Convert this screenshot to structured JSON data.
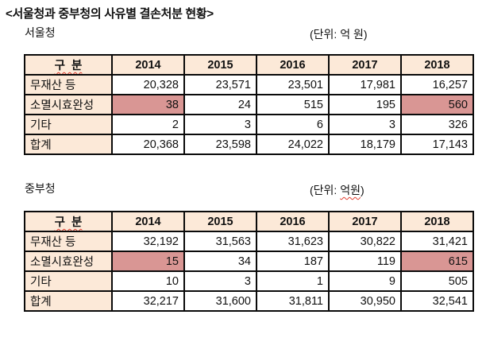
{
  "page": {
    "title": "<서울청과 중부청의 사유별 결손처분 현황>"
  },
  "colors": {
    "header_bg": "#FCE9D8",
    "highlight_bg": "#D99694",
    "border": "#0A0A0A",
    "spellcheck_red": "#E03C2D"
  },
  "tables": [
    {
      "label": "서울청",
      "unit_prefix": "(단위: ",
      "unit_word": "억 원",
      "unit_suffix": ")",
      "unit_misspelled": false,
      "header": [
        "구  분",
        "2014",
        "2015",
        "2016",
        "2017",
        "2018"
      ],
      "rows": [
        {
          "label": "무재산 등",
          "values": [
            "20,328",
            "23,571",
            "23,501",
            "17,981",
            "16,257"
          ],
          "highlight_cols": []
        },
        {
          "label": "소멸시효완성",
          "values": [
            "38",
            "24",
            "515",
            "195",
            "560"
          ],
          "highlight_cols": [
            0,
            4
          ]
        },
        {
          "label": "기타",
          "values": [
            "2",
            "3",
            "6",
            "3",
            "326"
          ],
          "highlight_cols": []
        },
        {
          "label": "합계",
          "values": [
            "20,368",
            "23,598",
            "24,022",
            "18,179",
            "17,143"
          ],
          "highlight_cols": []
        }
      ]
    },
    {
      "label": "중부청",
      "unit_prefix": "(단위: ",
      "unit_word": "억원",
      "unit_suffix": ")",
      "unit_misspelled": true,
      "header": [
        "구  분",
        "2014",
        "2015",
        "2016",
        "2017",
        "2018"
      ],
      "rows": [
        {
          "label": "무재산 등",
          "values": [
            "32,192",
            "31,563",
            "31,623",
            "30,822",
            "31,421"
          ],
          "highlight_cols": []
        },
        {
          "label": "소멸시효완성",
          "values": [
            "15",
            "34",
            "187",
            "119",
            "615"
          ],
          "highlight_cols": [
            0,
            4
          ]
        },
        {
          "label": "기타",
          "values": [
            "10",
            "3",
            "1",
            "9",
            "505"
          ],
          "highlight_cols": []
        },
        {
          "label": "합계",
          "values": [
            "32,217",
            "31,600",
            "31,811",
            "30,950",
            "32,541"
          ],
          "highlight_cols": []
        }
      ]
    }
  ]
}
